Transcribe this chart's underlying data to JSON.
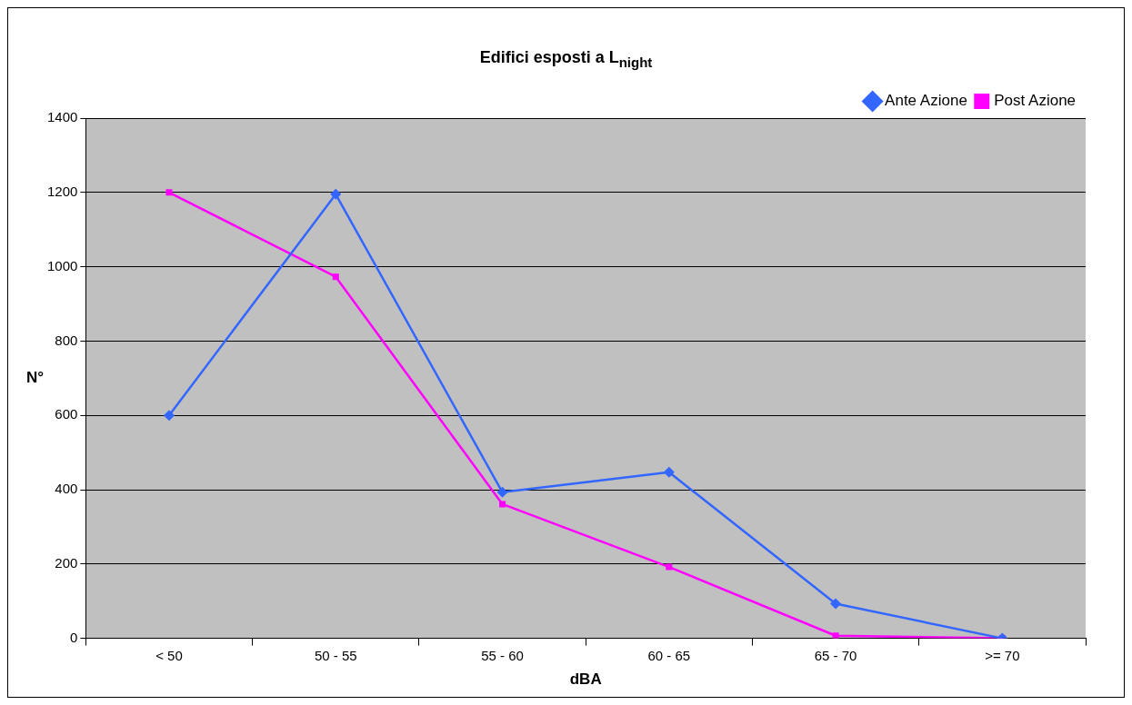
{
  "chart_data": {
    "type": "line",
    "title": "Edifici esposti a L$_{night}$",
    "xlabel": "dBA",
    "ylabel": "N°",
    "categories": [
      "< 50",
      "50 - 55",
      "55 - 60",
      "60 - 65",
      "65 - 70",
      ">= 70"
    ],
    "series": [
      {
        "name": "Ante Azione",
        "color": "#3366ff",
        "marker": "diamond",
        "values": [
          600,
          1195,
          393,
          447,
          93,
          0
        ]
      },
      {
        "name": "Post Azione",
        "color": "#ff00ff",
        "marker": "square",
        "values": [
          1200,
          973,
          361,
          192,
          7,
          0
        ]
      }
    ],
    "ylim": [
      0,
      1400
    ],
    "yticks": [
      0,
      200,
      400,
      600,
      800,
      1000,
      1200,
      1400
    ],
    "grid": "y",
    "legend": "top right",
    "line_style": "solid"
  }
}
